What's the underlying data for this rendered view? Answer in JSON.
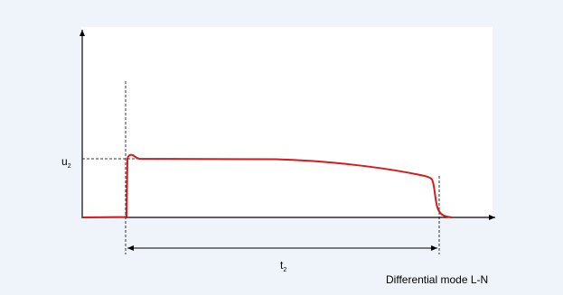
{
  "diagram": {
    "y_label": "u",
    "y_label_sub": "2",
    "x_label": "t",
    "x_label_sub": "2",
    "caption": "Differential mode L-N",
    "colors": {
      "background": "#eef4f9",
      "axes": "#000000",
      "pulse": "#d7191c",
      "guides": "#000000"
    }
  }
}
